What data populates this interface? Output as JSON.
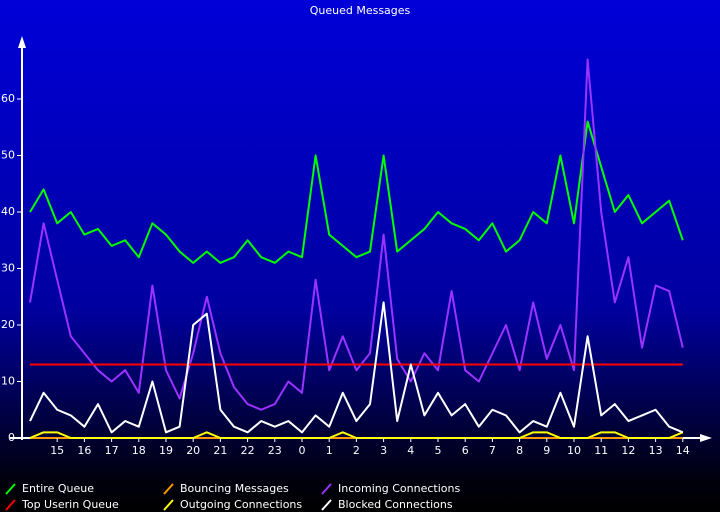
{
  "chart_data": {
    "type": "line",
    "title": "Queued Messages",
    "x": [
      0,
      0.5,
      1,
      1.5,
      2,
      2.5,
      3,
      3.5,
      4,
      4.5,
      5,
      5.5,
      6,
      6.5,
      7,
      7.5,
      8,
      8.5,
      9,
      9.5,
      10,
      10.5,
      11,
      11.5,
      12,
      12.5,
      13,
      13.5,
      14,
      14.5,
      15,
      15.5,
      16,
      16.5,
      17,
      17.5,
      18,
      18.5,
      19,
      19.5,
      20,
      20.5,
      21,
      21.5,
      22,
      22.5,
      23,
      23.5,
      24
    ],
    "xlim": [
      0,
      25
    ],
    "xticks": [
      {
        "value": 1,
        "label": "15"
      },
      {
        "value": 2,
        "label": "16"
      },
      {
        "value": 3,
        "label": "17"
      },
      {
        "value": 4,
        "label": "18"
      },
      {
        "value": 5,
        "label": "19"
      },
      {
        "value": 6,
        "label": "20"
      },
      {
        "value": 7,
        "label": "21"
      },
      {
        "value": 8,
        "label": "22"
      },
      {
        "value": 9,
        "label": "23"
      },
      {
        "value": 10,
        "label": "0"
      },
      {
        "value": 11,
        "label": "1"
      },
      {
        "value": 12,
        "label": "2"
      },
      {
        "value": 13,
        "label": "3"
      },
      {
        "value": 14,
        "label": "4"
      },
      {
        "value": 15,
        "label": "5"
      },
      {
        "value": 16,
        "label": "6"
      },
      {
        "value": 17,
        "label": "7"
      },
      {
        "value": 18,
        "label": "8"
      },
      {
        "value": 19,
        "label": "9"
      },
      {
        "value": 20,
        "label": "10"
      },
      {
        "value": 21,
        "label": "11"
      },
      {
        "value": 22,
        "label": "12"
      },
      {
        "value": 23,
        "label": "13"
      },
      {
        "value": 24,
        "label": "14"
      }
    ],
    "ylim": [
      0,
      70
    ],
    "yticks": [
      0,
      10,
      20,
      30,
      40,
      50,
      60
    ],
    "series": [
      {
        "name": "Entire Queue",
        "color": "#00ff00",
        "values": [
          40,
          44,
          38,
          40,
          36,
          37,
          34,
          35,
          32,
          38,
          36,
          33,
          31,
          33,
          31,
          32,
          35,
          32,
          31,
          33,
          32,
          50,
          36,
          34,
          32,
          33,
          50,
          33,
          35,
          37,
          40,
          38,
          37,
          35,
          38,
          33,
          35,
          40,
          38,
          50,
          38,
          56,
          48,
          40,
          43,
          38,
          40,
          42,
          35
        ]
      },
      {
        "name": "Top Userin Queue",
        "color": "#ff0000",
        "values": [
          13,
          13,
          13,
          13,
          13,
          13,
          13,
          13,
          13,
          13,
          13,
          13,
          13,
          13,
          13,
          13,
          13,
          13,
          13,
          13,
          13,
          13,
          13,
          13,
          13,
          13,
          13,
          13,
          13,
          13,
          13,
          13,
          13,
          13,
          13,
          13,
          13,
          13,
          13,
          13,
          13,
          13,
          13,
          13,
          13,
          13,
          13,
          13,
          13
        ]
      },
      {
        "name": "Bouncing Messages",
        "color": "#ff9900",
        "values": [
          0,
          0,
          0,
          0,
          0,
          0,
          0,
          0,
          0,
          0,
          0,
          0,
          0,
          0,
          0,
          0,
          0,
          0,
          0,
          0,
          0,
          0,
          0,
          0,
          0,
          0,
          0,
          0,
          0,
          0,
          0,
          0,
          0,
          0,
          0,
          0,
          0,
          0,
          0,
          0,
          0,
          0,
          0,
          0,
          0,
          0,
          0,
          0,
          0
        ]
      },
      {
        "name": "Outgoing Connections",
        "color": "#ffff00",
        "values": [
          0,
          1,
          1,
          0,
          0,
          0,
          0,
          0,
          0,
          0,
          0,
          0,
          0,
          1,
          0,
          0,
          0,
          0,
          0,
          0,
          0,
          0,
          0,
          1,
          0,
          0,
          0,
          0,
          0,
          0,
          0,
          0,
          0,
          0,
          0,
          0,
          0,
          1,
          1,
          0,
          0,
          0,
          1,
          1,
          0,
          0,
          0,
          0,
          1
        ]
      },
      {
        "name": "Incoming Connections",
        "color": "#9933ff",
        "values": [
          24,
          38,
          28,
          18,
          15,
          12,
          10,
          12,
          8,
          27,
          12,
          7,
          15,
          25,
          15,
          9,
          6,
          5,
          6,
          10,
          8,
          28,
          12,
          18,
          12,
          15,
          36,
          14,
          10,
          15,
          12,
          26,
          12,
          10,
          15,
          20,
          12,
          24,
          14,
          20,
          12,
          67,
          40,
          24,
          32,
          16,
          27,
          26,
          16
        ]
      },
      {
        "name": "Blocked Connections",
        "color": "#ffffff",
        "values": [
          3,
          8,
          5,
          4,
          2,
          6,
          1,
          3,
          2,
          10,
          1,
          2,
          20,
          22,
          5,
          2,
          1,
          3,
          2,
          3,
          1,
          4,
          2,
          8,
          3,
          6,
          24,
          3,
          13,
          4,
          8,
          4,
          6,
          2,
          5,
          4,
          1,
          3,
          2,
          8,
          2,
          18,
          4,
          6,
          3,
          4,
          5,
          2,
          1
        ]
      }
    ]
  }
}
